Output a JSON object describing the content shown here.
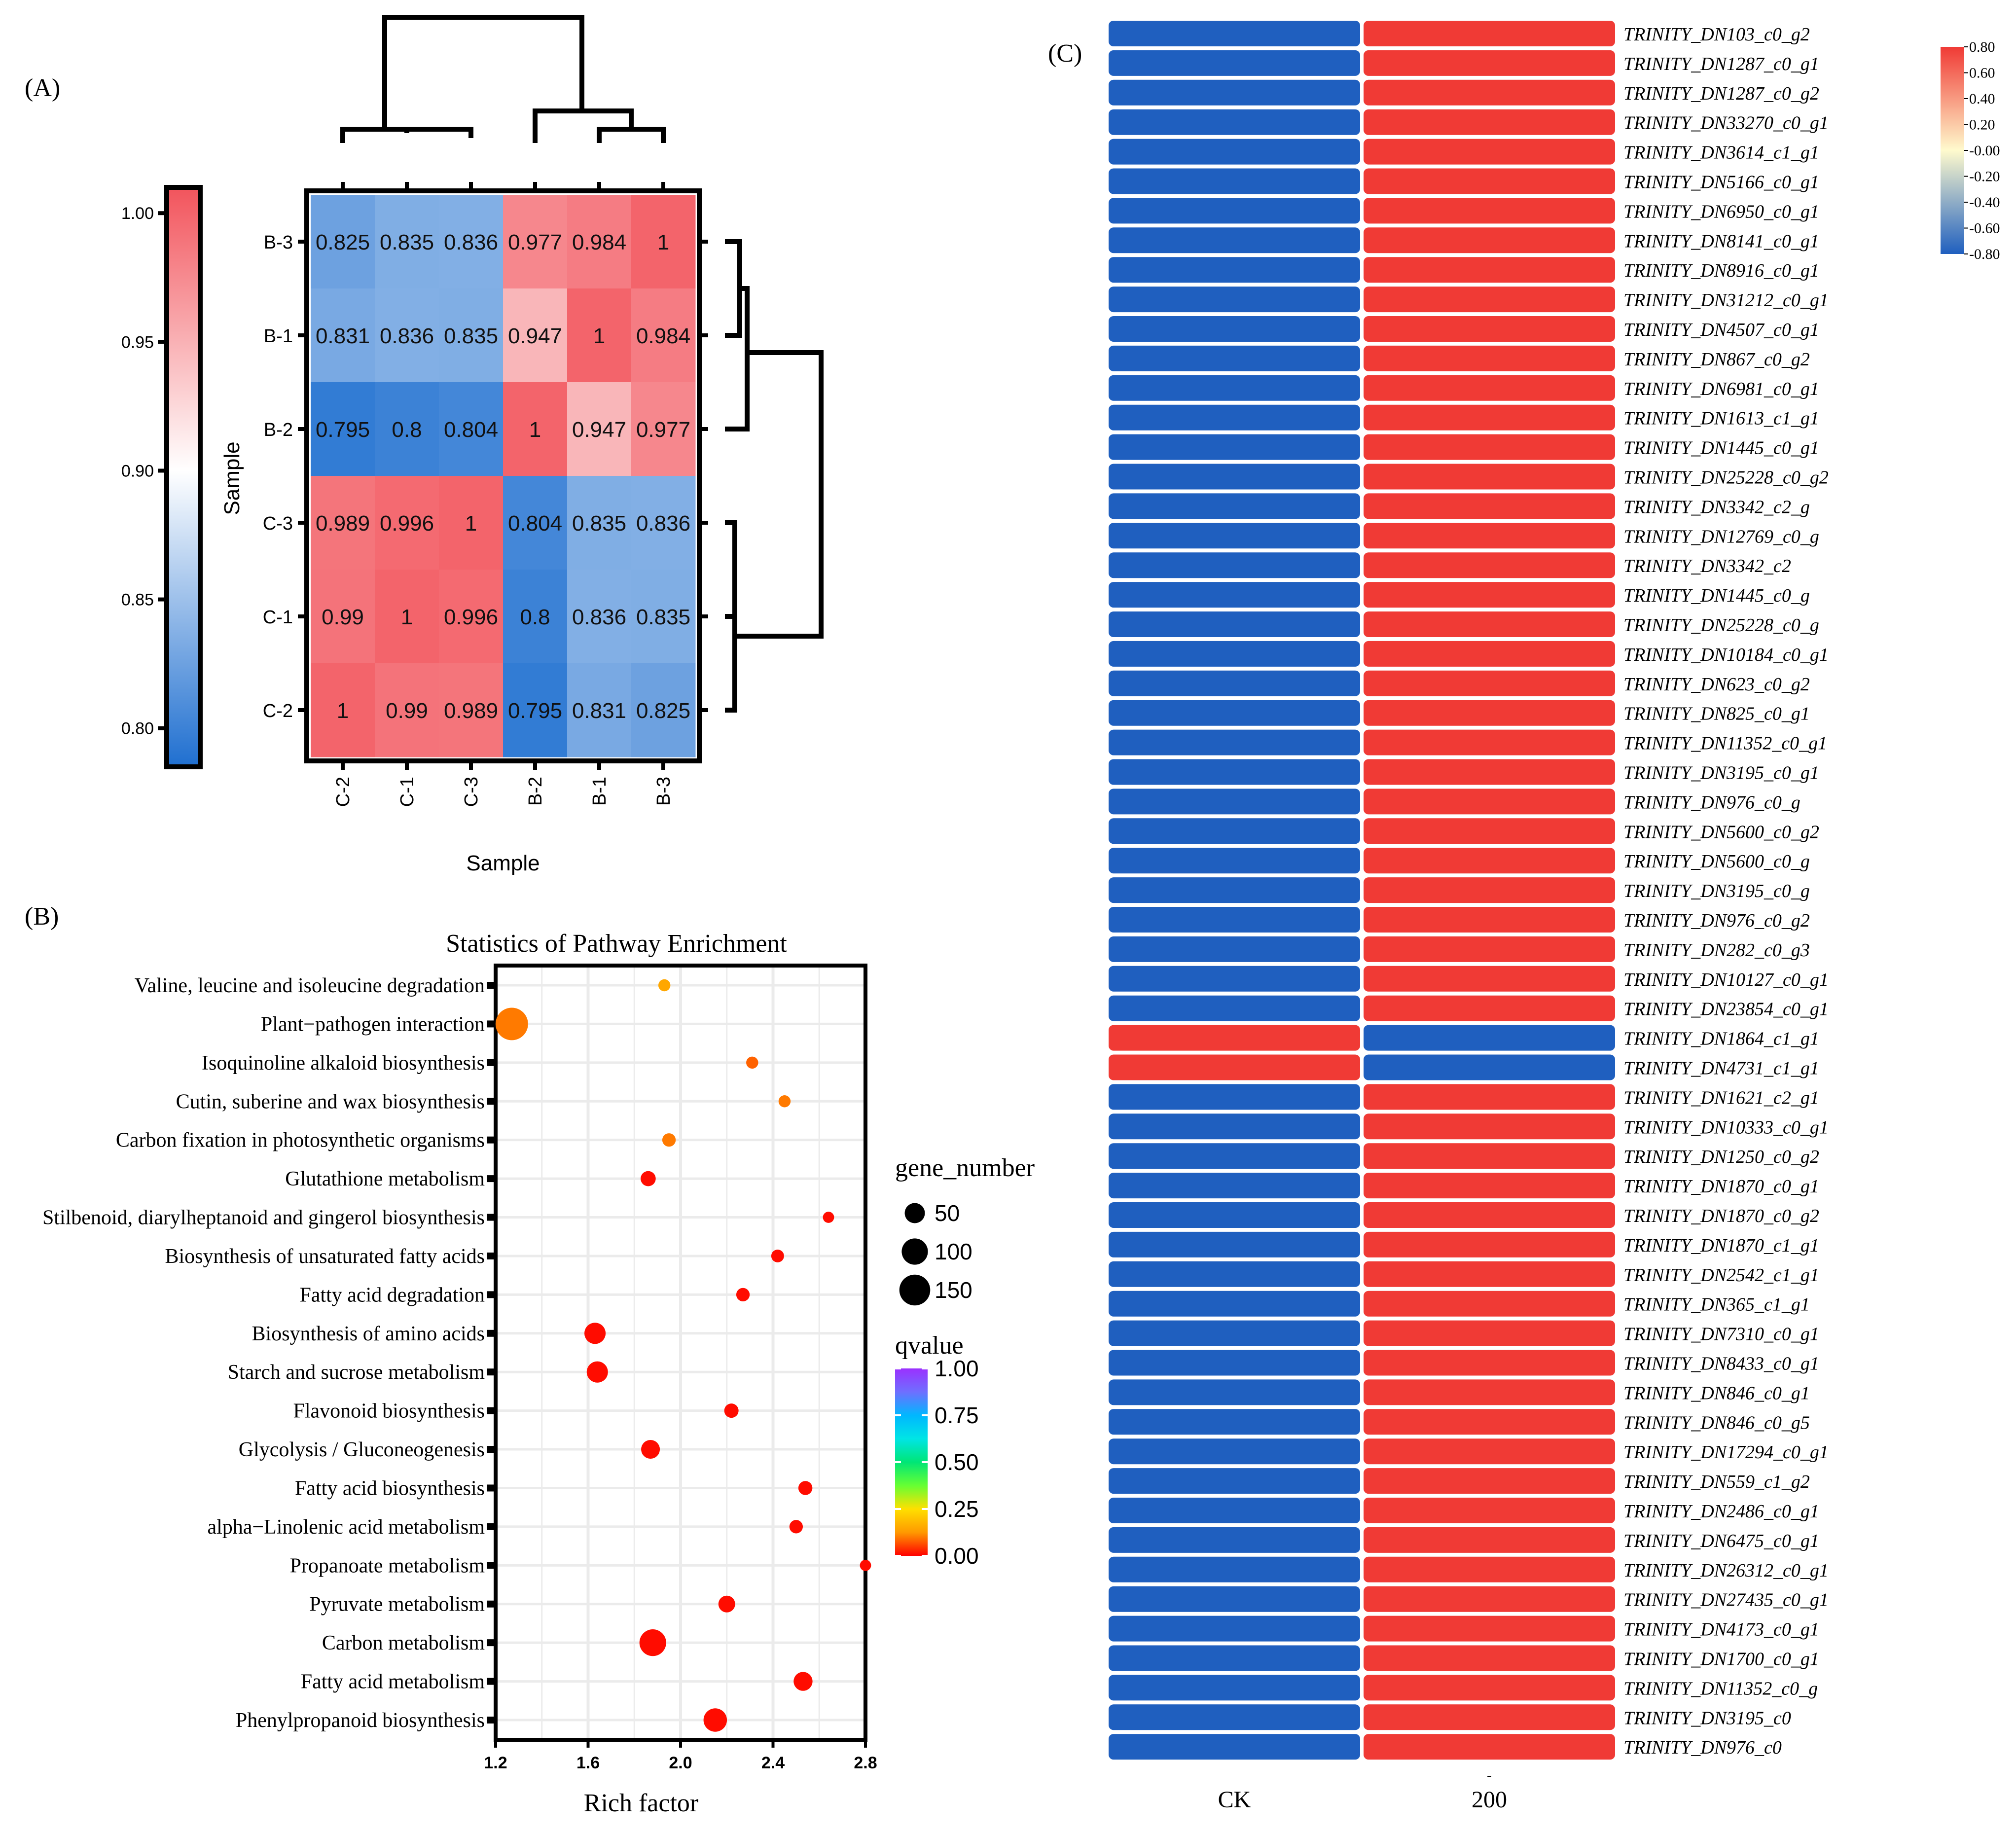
{
  "panels": {
    "a_label": "(A)",
    "b_label": "(B)",
    "c_label": "(C)"
  },
  "colors": {
    "red": "#f03a35",
    "blue": "#1f5fbf",
    "black": "#000000",
    "grid": "#ebebeb"
  },
  "chart_data": [
    {
      "type": "heatmap",
      "id": "correlation",
      "xlabel": "Sample",
      "ylabel": "Sample",
      "columns": [
        "C-2",
        "C-1",
        "C-3",
        "B-2",
        "B-1",
        "B-3"
      ],
      "rows": [
        "B-3",
        "B-1",
        "B-2",
        "C-3",
        "C-1",
        "C-2"
      ],
      "values": [
        [
          0.825,
          0.835,
          0.836,
          0.977,
          0.984,
          1
        ],
        [
          0.831,
          0.836,
          0.835,
          0.947,
          1,
          0.984
        ],
        [
          0.795,
          0.8,
          0.804,
          1,
          0.947,
          0.977
        ],
        [
          0.989,
          0.996,
          1,
          0.804,
          0.835,
          0.836
        ],
        [
          0.99,
          1,
          0.996,
          0.8,
          0.836,
          0.835
        ],
        [
          1,
          0.99,
          0.989,
          0.795,
          0.831,
          0.825
        ]
      ],
      "labels": [
        [
          "0.825",
          "0.835",
          "0.836",
          "0.977",
          "0.984",
          "1"
        ],
        [
          "0.831",
          "0.836",
          "0.835",
          "0.947",
          "1",
          "0.984"
        ],
        [
          "0.795",
          "0.8",
          "0.804",
          "1",
          "0.947",
          "0.977"
        ],
        [
          "0.989",
          "0.996",
          "1",
          "0.804",
          "0.835",
          "0.836"
        ],
        [
          "0.99",
          "1",
          "0.996",
          "0.8",
          "0.836",
          "0.835"
        ],
        [
          "1",
          "0.99",
          "0.989",
          "0.795",
          "0.831",
          "0.825"
        ]
      ],
      "colorbar": {
        "range": [
          0.785,
          1.01
        ],
        "ticks": [
          1.0,
          0.95,
          0.9,
          0.85,
          0.8
        ],
        "tick_labels": [
          "1.00",
          "0.95",
          "0.90",
          "0.85",
          "0.80"
        ],
        "low_color": "#1f6fd0",
        "mid_color": "#ffffff",
        "high_color": "#f2545c",
        "mid_value": 0.9
      }
    },
    {
      "type": "scatter",
      "id": "pathway_enrichment",
      "title": "Statistics of Pathway Enrichment",
      "xlabel": "Rich factor",
      "xlim": [
        1.2,
        2.8
      ],
      "xticks": [
        1.2,
        1.6,
        2.0,
        2.4,
        2.8
      ],
      "xtick_labels": [
        "1.2",
        "1.6",
        "2.0",
        "2.4",
        "2.8"
      ],
      "categories": [
        "Valine, leucine and isoleucine degradation",
        "Plant−pathogen interaction",
        "Isoquinoline alkaloid biosynthesis",
        "Cutin, suberine and wax biosynthesis",
        "Carbon fixation in photosynthetic organisms",
        "Glutathione metabolism",
        "Stilbenoid, diarylheptanoid and gingerol biosynthesis",
        "Biosynthesis of unsaturated fatty acids",
        "Fatty acid degradation",
        "Biosynthesis of amino acids",
        "Starch and sucrose metabolism",
        "Flavonoid biosynthesis",
        "Glycolysis / Gluconeogenesis",
        "Fatty acid biosynthesis",
        "alpha−Linolenic acid metabolism",
        "Propanoate metabolism",
        "Pyruvate metabolism",
        "Carbon metabolism",
        "Fatty acid metabolism",
        "Phenylpropanoid biosynthesis"
      ],
      "rich_factor": [
        1.93,
        1.27,
        2.31,
        2.45,
        1.95,
        1.86,
        2.64,
        2.42,
        2.27,
        1.63,
        1.64,
        2.22,
        1.87,
        2.54,
        2.5,
        2.8,
        2.2,
        1.88,
        2.53,
        2.15
      ],
      "gene_number": [
        8,
        150,
        8,
        8,
        12,
        18,
        6,
        10,
        12,
        50,
        50,
        15,
        35,
        14,
        12,
        6,
        25,
        92,
        36,
        65
      ],
      "qvalue": [
        0.15,
        0.1,
        0.08,
        0.1,
        0.1,
        0.01,
        0.01,
        0.01,
        0.01,
        0.01,
        0.01,
        0.01,
        0.01,
        0.01,
        0.01,
        0.01,
        0.01,
        0.01,
        0.01,
        0.01
      ],
      "size_legend": {
        "title": "gene_number",
        "values": [
          50,
          100,
          150
        ],
        "labels": [
          "50",
          "100",
          "150"
        ]
      },
      "color_legend": {
        "title": "qvalue",
        "ticks": [
          1.0,
          0.75,
          0.5,
          0.25,
          0.0
        ],
        "tick_labels": [
          "1.00",
          "0.75",
          "0.50",
          "0.25",
          "0.00"
        ],
        "stops": [
          "#9b30ff",
          "#6f6fff",
          "#00b7ff",
          "#00e5e5",
          "#00e676",
          "#66ff33",
          "#ffe000",
          "#ff9900",
          "#ff0000"
        ]
      }
    },
    {
      "type": "heatmap",
      "id": "gene_expression",
      "columns": [
        "CK",
        "200"
      ],
      "extra_tick": "-",
      "genes": [
        "TRINITY_DN103_c0_g2",
        "TRINITY_DN1287_c0_g1",
        "TRINITY_DN1287_c0_g2",
        "TRINITY_DN33270_c0_g1",
        "TRINITY_DN3614_c1_g1",
        "TRINITY_DN5166_c0_g1",
        "TRINITY_DN6950_c0_g1",
        "TRINITY_DN8141_c0_g1",
        "TRINITY_DN8916_c0_g1",
        "TRINITY_DN31212_c0_g1",
        "TRINITY_DN4507_c0_g1",
        "TRINITY_DN867_c0_g2",
        "TRINITY_DN6981_c0_g1",
        "TRINITY_DN1613_c1_g1",
        "TRINITY_DN1445_c0_g1",
        "TRINITY_DN25228_c0_g2",
        "TRINITY_DN3342_c2_g",
        "TRINITY_DN12769_c0_g",
        "TRINITY_DN3342_c2",
        "TRINITY_DN1445_c0_g",
        "TRINITY_DN25228_c0_g",
        "TRINITY_DN10184_c0_g1",
        "TRINITY_DN623_c0_g2",
        "TRINITY_DN825_c0_g1",
        "TRINITY_DN11352_c0_g1",
        "TRINITY_DN3195_c0_g1",
        "TRINITY_DN976_c0_g",
        "TRINITY_DN5600_c0_g2",
        "TRINITY_DN5600_c0_g",
        "TRINITY_DN3195_c0_g",
        "TRINITY_DN976_c0_g2",
        "TRINITY_DN282_c0_g3",
        "TRINITY_DN10127_c0_g1",
        "TRINITY_DN23854_c0_g1",
        "TRINITY_DN1864_c1_g1",
        "TRINITY_DN4731_c1_g1",
        "TRINITY_DN1621_c2_g1",
        "TRINITY_DN10333_c0_g1",
        "TRINITY_DN1250_c0_g2",
        "TRINITY_DN1870_c0_g1",
        "TRINITY_DN1870_c0_g2",
        "TRINITY_DN1870_c1_g1",
        "TRINITY_DN2542_c1_g1",
        "TRINITY_DN365_c1_g1",
        "TRINITY_DN7310_c0_g1",
        "TRINITY_DN8433_c0_g1",
        "TRINITY_DN846_c0_g1",
        "TRINITY_DN846_c0_g5",
        "TRINITY_DN17294_c0_g1",
        "TRINITY_DN559_c1_g2",
        "TRINITY_DN2486_c0_g1",
        "TRINITY_DN6475_c0_g1",
        "TRINITY_DN26312_c0_g1",
        "TRINITY_DN27435_c0_g1",
        "TRINITY_DN4173_c0_g1",
        "TRINITY_DN1700_c0_g1",
        "TRINITY_DN11352_c0_g",
        "TRINITY_DN3195_c0",
        "TRINITY_DN976_c0"
      ],
      "ck_values": [
        -0.8,
        -0.8,
        -0.8,
        -0.8,
        -0.8,
        -0.8,
        -0.8,
        -0.8,
        -0.8,
        -0.8,
        -0.8,
        -0.8,
        -0.8,
        -0.8,
        -0.8,
        -0.8,
        -0.8,
        -0.8,
        -0.8,
        -0.8,
        -0.8,
        -0.8,
        -0.8,
        -0.8,
        -0.8,
        -0.8,
        -0.8,
        -0.8,
        -0.8,
        -0.8,
        -0.8,
        -0.8,
        -0.8,
        -0.8,
        0.8,
        0.8,
        -0.8,
        -0.8,
        -0.8,
        -0.8,
        -0.8,
        -0.8,
        -0.8,
        -0.8,
        -0.8,
        -0.8,
        -0.8,
        -0.8,
        -0.8,
        -0.8,
        -0.8,
        -0.8,
        -0.8,
        -0.8,
        -0.8,
        -0.8,
        -0.8,
        -0.8,
        -0.8
      ],
      "t200_values": [
        0.8,
        0.8,
        0.8,
        0.8,
        0.8,
        0.8,
        0.8,
        0.8,
        0.8,
        0.8,
        0.8,
        0.8,
        0.8,
        0.8,
        0.8,
        0.8,
        0.8,
        0.8,
        0.8,
        0.8,
        0.8,
        0.8,
        0.8,
        0.8,
        0.8,
        0.8,
        0.8,
        0.8,
        0.8,
        0.8,
        0.8,
        0.8,
        0.8,
        0.8,
        -0.8,
        -0.8,
        0.8,
        0.8,
        0.8,
        0.8,
        0.8,
        0.8,
        0.8,
        0.8,
        0.8,
        0.8,
        0.8,
        0.8,
        0.8,
        0.8,
        0.8,
        0.8,
        0.8,
        0.8,
        0.8,
        0.8,
        0.8,
        0.8,
        0.8
      ],
      "colorbar": {
        "range": [
          -0.8,
          0.8
        ],
        "ticks": [
          0.8,
          0.6,
          0.4,
          0.2,
          0.0,
          -0.2,
          -0.4,
          -0.6,
          -0.8
        ],
        "tick_labels": [
          "0.80",
          "0.60",
          "0.40",
          "0.20",
          "-0.00",
          "-0.20",
          "-0.40",
          "-0.60",
          "-0.80"
        ],
        "stops": [
          "#1f5fbf",
          "#fffacd",
          "#f03a35"
        ]
      }
    }
  ]
}
